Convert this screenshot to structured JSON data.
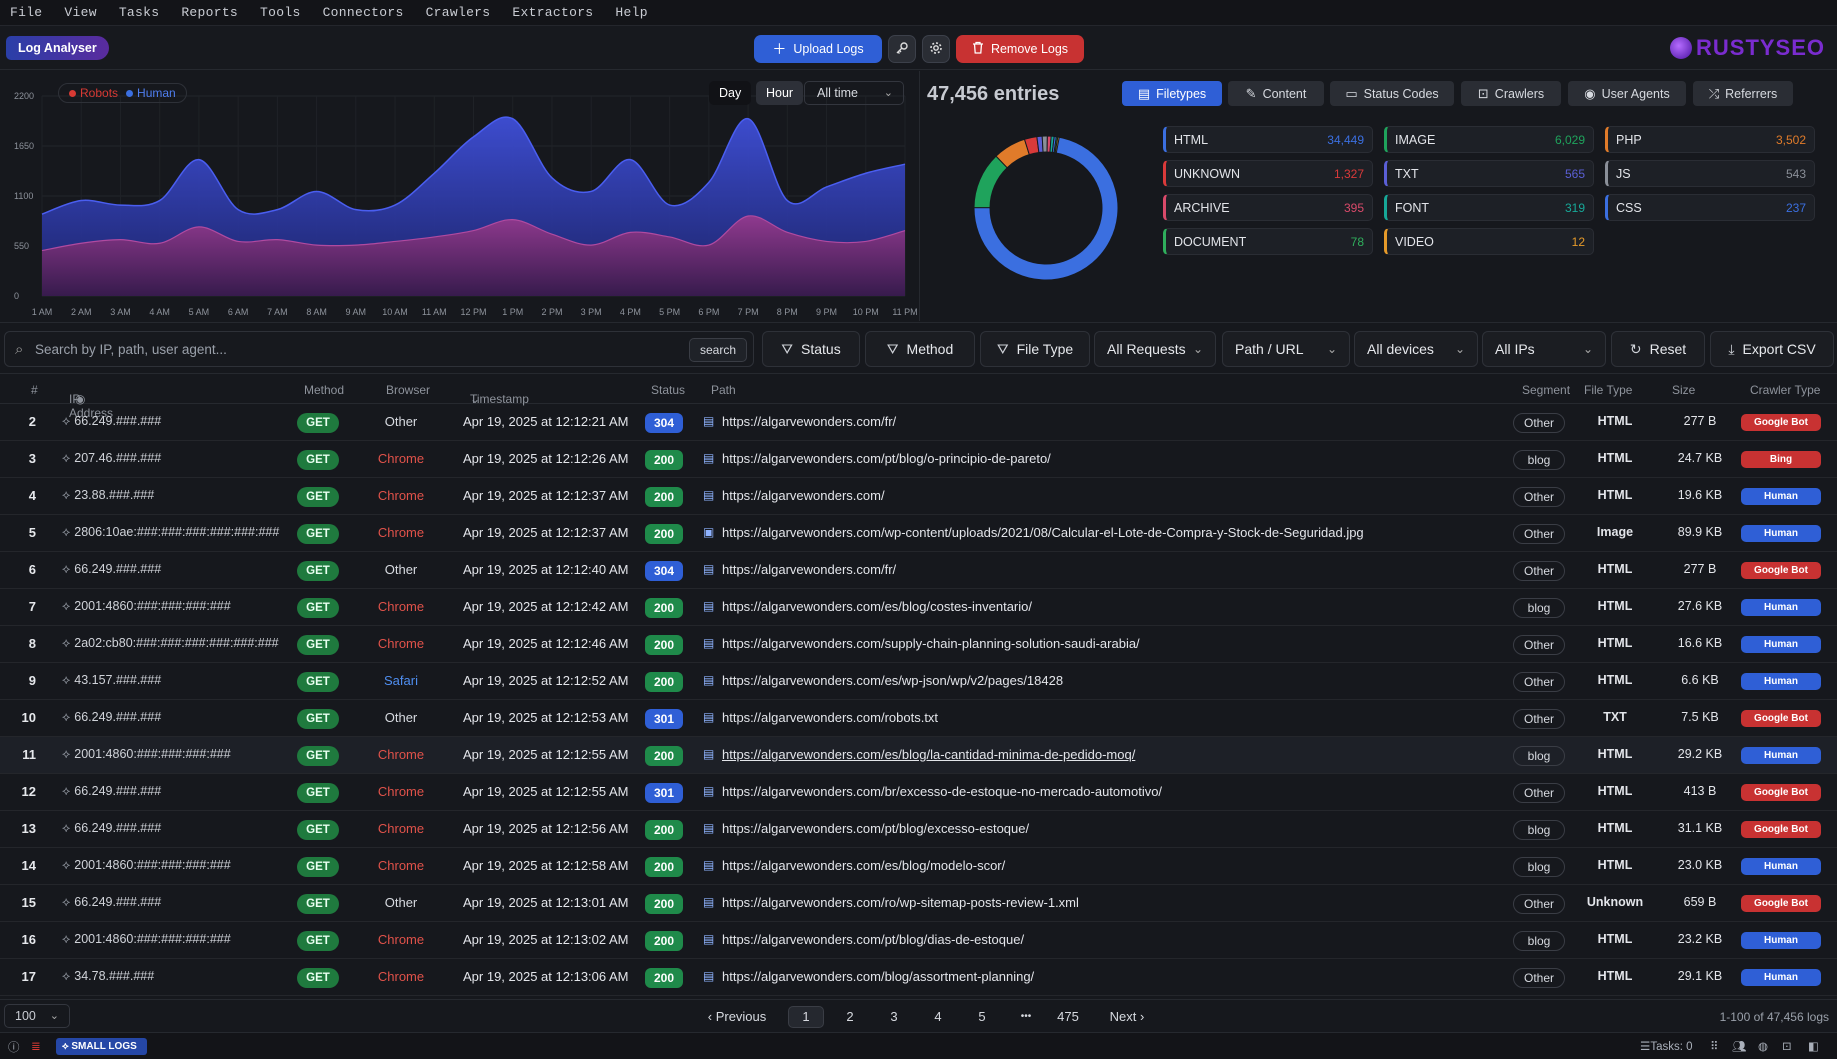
{
  "menu": [
    "File",
    "View",
    "Tasks",
    "Reports",
    "Tools",
    "Connectors",
    "Crawlers",
    "Extractors",
    "Help"
  ],
  "toolbar": {
    "app_tab": "Log Analyser",
    "upload_label": "Upload Logs",
    "remove_label": "Remove Logs",
    "brand": "RUSTYSEO"
  },
  "chart": {
    "legend_robots": "Robots",
    "legend_human": "Human",
    "btn_day": "Day",
    "btn_hour": "Hour",
    "range": "All time",
    "colors": {
      "robots": "#c8342f",
      "human": "#3b5bdb"
    }
  },
  "chart_data": {
    "type": "area",
    "x": [
      "1 AM",
      "2 AM",
      "3 AM",
      "4 AM",
      "5 AM",
      "6 AM",
      "7 AM",
      "8 AM",
      "9 AM",
      "10 AM",
      "11 AM",
      "12 PM",
      "1 PM",
      "2 PM",
      "3 PM",
      "4 PM",
      "5 PM",
      "6 PM",
      "7 PM",
      "8 PM",
      "9 PM",
      "10 PM",
      "11 PM"
    ],
    "yticks": [
      0,
      550,
      1100,
      1650,
      2200
    ],
    "ylim": [
      0,
      2200
    ],
    "series": [
      {
        "name": "Human",
        "values": [
          900,
          1050,
          1000,
          1050,
          1500,
          950,
          950,
          1150,
          950,
          1000,
          1350,
          1750,
          1950,
          1300,
          1150,
          1500,
          1000,
          1250,
          1950,
          1050,
          1200,
          1350,
          1450
        ]
      },
      {
        "name": "Robots",
        "values": [
          500,
          580,
          620,
          580,
          760,
          600,
          620,
          560,
          560,
          600,
          650,
          720,
          840,
          680,
          560,
          700,
          650,
          560,
          880,
          700,
          600,
          600,
          720
        ]
      }
    ]
  },
  "filetypes": {
    "entries": "47,456 entries",
    "tabs": [
      "Filetypes",
      "Content",
      "Status Codes",
      "Crawlers",
      "User Agents",
      "Referrers"
    ],
    "cards": [
      {
        "label": "HTML",
        "count": "34,449",
        "color": "#3b6fe0"
      },
      {
        "label": "IMAGE",
        "count": "6,029",
        "color": "#1fa35c"
      },
      {
        "label": "PHP",
        "count": "3,502",
        "color": "#e07b2a"
      },
      {
        "label": "UNKNOWN",
        "count": "1,327",
        "color": "#d93a3a"
      },
      {
        "label": "TXT",
        "count": "565",
        "color": "#5b5fd6"
      },
      {
        "label": "JS",
        "count": "543",
        "color": "#8a8f98"
      },
      {
        "label": "ARCHIVE",
        "count": "395",
        "color": "#d94a6a"
      },
      {
        "label": "FONT",
        "count": "319",
        "color": "#17a898"
      },
      {
        "label": "CSS",
        "count": "237",
        "color": "#3b6fe0"
      },
      {
        "label": "DOCUMENT",
        "count": "78",
        "color": "#2fae5c"
      },
      {
        "label": "VIDEO",
        "count": "12",
        "color": "#e59a2a"
      }
    ],
    "donut_values": [
      34449,
      6029,
      3502,
      1327,
      565,
      543,
      395,
      319,
      237,
      78,
      12
    ]
  },
  "filters": {
    "search_placeholder": "Search by IP, path, user agent...",
    "search_btn": "search",
    "status": "Status",
    "method": "Method",
    "filetype": "File Type",
    "requests": "All Requests",
    "path": "Path / URL",
    "devices": "All devices",
    "ips": "All IPs",
    "reset": "Reset",
    "export": "Export CSV"
  },
  "table": {
    "headers": {
      "num": "#",
      "ip": "IP Address",
      "method": "Method",
      "browser": "Browser",
      "timestamp": "Timestamp",
      "status": "Status",
      "path": "Path",
      "segment": "Segment",
      "filetype": "File Type",
      "size": "Size",
      "crawler": "Crawler Type"
    },
    "rows": [
      {
        "num": "2",
        "ip": "66.249.###.###",
        "method": "GET",
        "browser": "Other",
        "ts": "Apr 19, 2025 at 12:12:21 AM",
        "status": "304",
        "path": "https://algarvewonders.com/fr/",
        "seg": "Other",
        "ft": "HTML",
        "size": "277 B",
        "crawler": "Google Bot"
      },
      {
        "num": "3",
        "ip": "207.46.###.###",
        "method": "GET",
        "browser": "Chrome",
        "ts": "Apr 19, 2025 at 12:12:26 AM",
        "status": "200",
        "path": "https://algarvewonders.com/pt/blog/o-principio-de-pareto/",
        "seg": "blog",
        "ft": "HTML",
        "size": "24.7 KB",
        "crawler": "Bing"
      },
      {
        "num": "4",
        "ip": "23.88.###.###",
        "method": "GET",
        "browser": "Chrome",
        "ts": "Apr 19, 2025 at 12:12:37 AM",
        "status": "200",
        "path": "https://algarvewonders.com/",
        "seg": "Other",
        "ft": "HTML",
        "size": "19.6 KB",
        "crawler": "Human"
      },
      {
        "num": "5",
        "ip": "2806:10ae:###:###:###:###:###:###",
        "method": "GET",
        "browser": "Chrome",
        "ts": "Apr 19, 2025 at 12:12:37 AM",
        "status": "200",
        "path": "https://algarvewonders.com/wp-content/uploads/2021/08/Calcular-el-Lote-de-Compra-y-Stock-de-Seguridad.jpg",
        "seg": "Other",
        "ft": "Image",
        "size": "89.9 KB",
        "crawler": "Human"
      },
      {
        "num": "6",
        "ip": "66.249.###.###",
        "method": "GET",
        "browser": "Other",
        "ts": "Apr 19, 2025 at 12:12:40 AM",
        "status": "304",
        "path": "https://algarvewonders.com/fr/",
        "seg": "Other",
        "ft": "HTML",
        "size": "277 B",
        "crawler": "Google Bot"
      },
      {
        "num": "7",
        "ip": "2001:4860:###:###:###:###",
        "method": "GET",
        "browser": "Chrome",
        "ts": "Apr 19, 2025 at 12:12:42 AM",
        "status": "200",
        "path": "https://algarvewonders.com/es/blog/costes-inventario/",
        "seg": "blog",
        "ft": "HTML",
        "size": "27.6 KB",
        "crawler": "Human"
      },
      {
        "num": "8",
        "ip": "2a02:cb80:###:###:###:###:###:###",
        "method": "GET",
        "browser": "Chrome",
        "ts": "Apr 19, 2025 at 12:12:46 AM",
        "status": "200",
        "path": "https://algarvewonders.com/supply-chain-planning-solution-saudi-arabia/",
        "seg": "Other",
        "ft": "HTML",
        "size": "16.6 KB",
        "crawler": "Human"
      },
      {
        "num": "9",
        "ip": "43.157.###.###",
        "method": "GET",
        "browser": "Safari",
        "ts": "Apr 19, 2025 at 12:12:52 AM",
        "status": "200",
        "path": "https://algarvewonders.com/es/wp-json/wp/v2/pages/18428",
        "seg": "Other",
        "ft": "HTML",
        "size": "6.6 KB",
        "crawler": "Human"
      },
      {
        "num": "10",
        "ip": "66.249.###.###",
        "method": "GET",
        "browser": "Other",
        "ts": "Apr 19, 2025 at 12:12:53 AM",
        "status": "301",
        "path": "https://algarvewonders.com/robots.txt",
        "seg": "Other",
        "ft": "TXT",
        "size": "7.5 KB",
        "crawler": "Google Bot"
      },
      {
        "num": "11",
        "ip": "2001:4860:###:###:###:###",
        "method": "GET",
        "browser": "Chrome",
        "ts": "Apr 19, 2025 at 12:12:55 AM",
        "status": "200",
        "path": "https://algarvewonders.com/es/blog/la-cantidad-minima-de-pedido-moq/",
        "seg": "blog",
        "ft": "HTML",
        "size": "29.2 KB",
        "crawler": "Human"
      },
      {
        "num": "12",
        "ip": "66.249.###.###",
        "method": "GET",
        "browser": "Chrome",
        "ts": "Apr 19, 2025 at 12:12:55 AM",
        "status": "301",
        "path": "https://algarvewonders.com/br/excesso-de-estoque-no-mercado-automotivo/",
        "seg": "Other",
        "ft": "HTML",
        "size": "413 B",
        "crawler": "Google Bot"
      },
      {
        "num": "13",
        "ip": "66.249.###.###",
        "method": "GET",
        "browser": "Chrome",
        "ts": "Apr 19, 2025 at 12:12:56 AM",
        "status": "200",
        "path": "https://algarvewonders.com/pt/blog/excesso-estoque/",
        "seg": "blog",
        "ft": "HTML",
        "size": "31.1 KB",
        "crawler": "Google Bot"
      },
      {
        "num": "14",
        "ip": "2001:4860:###:###:###:###",
        "method": "GET",
        "browser": "Chrome",
        "ts": "Apr 19, 2025 at 12:12:58 AM",
        "status": "200",
        "path": "https://algarvewonders.com/es/blog/modelo-scor/",
        "seg": "blog",
        "ft": "HTML",
        "size": "23.0 KB",
        "crawler": "Human"
      },
      {
        "num": "15",
        "ip": "66.249.###.###",
        "method": "GET",
        "browser": "Other",
        "ts": "Apr 19, 2025 at 12:13:01 AM",
        "status": "200",
        "path": "https://algarvewonders.com/ro/wp-sitemap-posts-review-1.xml",
        "seg": "Other",
        "ft": "Unknown",
        "size": "659 B",
        "crawler": "Google Bot"
      },
      {
        "num": "16",
        "ip": "2001:4860:###:###:###:###",
        "method": "GET",
        "browser": "Chrome",
        "ts": "Apr 19, 2025 at 12:13:02 AM",
        "status": "200",
        "path": "https://algarvewonders.com/pt/blog/dias-de-estoque/",
        "seg": "blog",
        "ft": "HTML",
        "size": "23.2 KB",
        "crawler": "Human"
      },
      {
        "num": "17",
        "ip": "34.78.###.###",
        "method": "GET",
        "browser": "Chrome",
        "ts": "Apr 19, 2025 at 12:13:06 AM",
        "status": "200",
        "path": "https://algarvewonders.com/blog/assortment-planning/",
        "seg": "Other",
        "ft": "HTML",
        "size": "29.1 KB",
        "crawler": "Human"
      }
    ]
  },
  "pager": {
    "per_page": "100",
    "prev": "Previous",
    "pages": [
      "1",
      "2",
      "3",
      "4",
      "5"
    ],
    "ellipsis": "•••",
    "last": "475",
    "next": "Next",
    "range_info": "1-100 of 47,456 logs"
  },
  "statusbar": {
    "small_logs": "SMALL LOGS",
    "tasks": "Tasks: 0"
  }
}
